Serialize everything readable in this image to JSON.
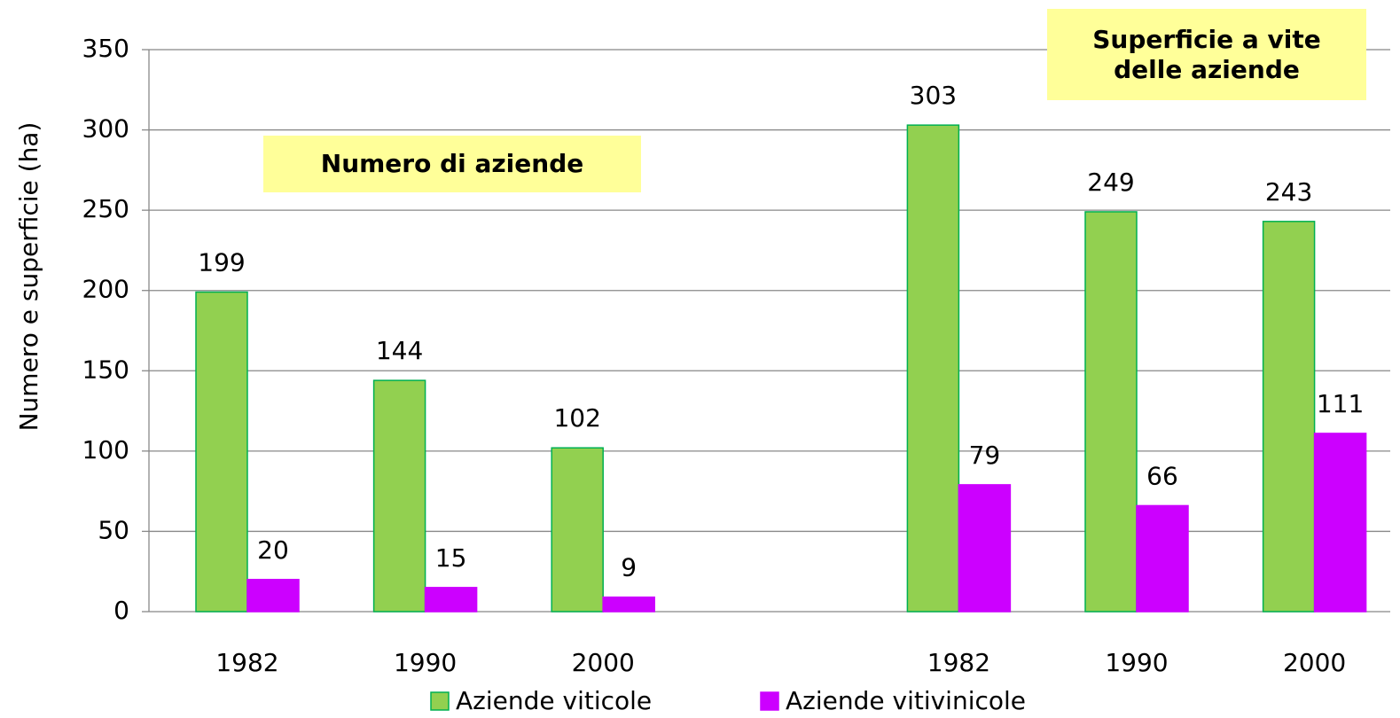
{
  "chart_data": {
    "type": "bar",
    "y_label": "Numero e superficie (ha)",
    "annotations": [
      "Numero di aziende",
      "Superficie a vite delle aziende"
    ],
    "categories": [
      "1982",
      "1990",
      "2000",
      null,
      "1982",
      "1990",
      "2000"
    ],
    "series": [
      {
        "name": "Aziende viticole",
        "color": "#92d050",
        "values": [
          199,
          144,
          102,
          null,
          303,
          249,
          243
        ]
      },
      {
        "name": "Aziende vitivinicole",
        "color": "#cc00ff",
        "values": [
          20,
          15,
          9,
          null,
          79,
          66,
          111
        ]
      }
    ],
    "ylim": [
      0,
      350
    ],
    "yticks": [
      0,
      50,
      100,
      150,
      200,
      250,
      300,
      350
    ],
    "grid": true
  }
}
